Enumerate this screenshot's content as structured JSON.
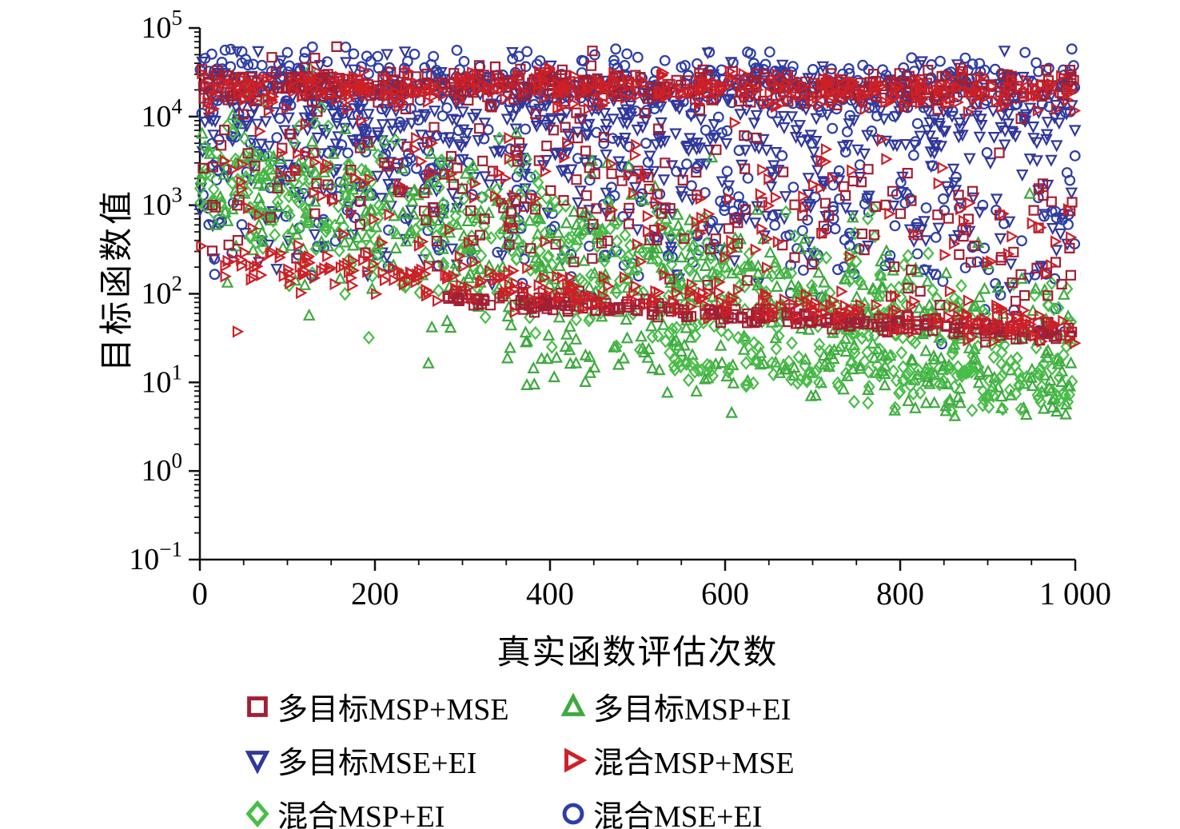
{
  "chart_data": {
    "type": "scatter",
    "title": "",
    "xlabel": "真实函数评估次数",
    "ylabel": "目标函数值",
    "xlim": [
      0,
      1000
    ],
    "x_ticks": [
      0,
      200,
      400,
      600,
      800,
      1000
    ],
    "x_tick_labels": [
      "0",
      "200",
      "400",
      "600",
      "800",
      "1 000"
    ],
    "x_minor_step": 50,
    "y_scale": "log",
    "ylim_log": [
      -1,
      5
    ],
    "y_tick_exponents": [
      5,
      4,
      3,
      2,
      1,
      0,
      -1
    ],
    "grid": false,
    "legend_position": "bottom",
    "axis_color": "#111111",
    "seed": 1337,
    "series": [
      {
        "name": "多目标MSP+MSE",
        "marker": "square",
        "color": "#a31f34",
        "bands": [
          {
            "count": 450,
            "x0": 0,
            "x1": 1000,
            "ly0": 4.38,
            "ly1": 4.3,
            "sd": 0.1
          },
          {
            "count": 220,
            "x0": 0,
            "x1": 1000,
            "ly0": 3.6,
            "ly1": 2.6,
            "sd": 0.55
          },
          {
            "count": 280,
            "x0": 280,
            "x1": 1000,
            "ly0": 1.95,
            "ly1": 1.55,
            "sd": 0.05
          }
        ],
        "ly_min": -0.9
      },
      {
        "name": "多目标MSP+EI",
        "marker": "triangle-up",
        "color": "#3fa93f",
        "bands": [
          {
            "count": 500,
            "x0": 0,
            "x1": 1000,
            "ly0": 3.2,
            "ly1": 1.3,
            "sd": 0.45
          },
          {
            "count": 120,
            "x0": 350,
            "x1": 1000,
            "ly0": 1.4,
            "ly1": 0.85,
            "sd": 0.18
          }
        ],
        "ly_min": 0.6
      },
      {
        "name": "多目标MSE+EI",
        "marker": "triangle-down",
        "color": "#31379b",
        "bands": [
          {
            "count": 400,
            "x0": 0,
            "x1": 1000,
            "ly0": 4.0,
            "ly1": 4.05,
            "sd": 0.3
          },
          {
            "count": 280,
            "x0": 0,
            "x1": 1000,
            "ly0": 3.4,
            "ly1": 2.9,
            "sd": 0.5
          }
        ],
        "ly_min": 1.2
      },
      {
        "name": "混合MSP+MSE",
        "marker": "triangle-right",
        "color": "#cd2027",
        "bands": [
          {
            "count": 320,
            "x0": 0,
            "x1": 1000,
            "ly0": 4.32,
            "ly1": 4.28,
            "sd": 0.1
          },
          {
            "count": 260,
            "x0": 0,
            "x1": 1000,
            "ly0": 2.35,
            "ly1": 1.62,
            "sd": 0.1
          },
          {
            "count": 140,
            "x0": 0,
            "x1": 1000,
            "ly0": 3.4,
            "ly1": 2.6,
            "sd": 0.5
          }
        ],
        "ly_min": 1.3
      },
      {
        "name": "混合MSP+EI",
        "marker": "diamond",
        "color": "#49bd49",
        "bands": [
          {
            "count": 520,
            "x0": 0,
            "x1": 1000,
            "ly0": 3.35,
            "ly1": 1.2,
            "sd": 0.45
          },
          {
            "count": 100,
            "x0": 500,
            "x1": 1000,
            "ly0": 1.3,
            "ly1": 0.9,
            "sd": 0.15
          }
        ],
        "ly_min": 0.65
      },
      {
        "name": "混合MSE+EI",
        "marker": "circle",
        "color": "#2d3ea6",
        "bands": [
          {
            "count": 430,
            "x0": 0,
            "x1": 1000,
            "ly0": 4.4,
            "ly1": 4.35,
            "sd": 0.18
          },
          {
            "count": 300,
            "x0": 0,
            "x1": 1000,
            "ly0": 3.3,
            "ly1": 2.7,
            "sd": 0.55
          }
        ],
        "ly_min": 1.2
      }
    ],
    "legend_order": [
      0,
      1,
      2,
      3,
      4,
      5
    ]
  }
}
